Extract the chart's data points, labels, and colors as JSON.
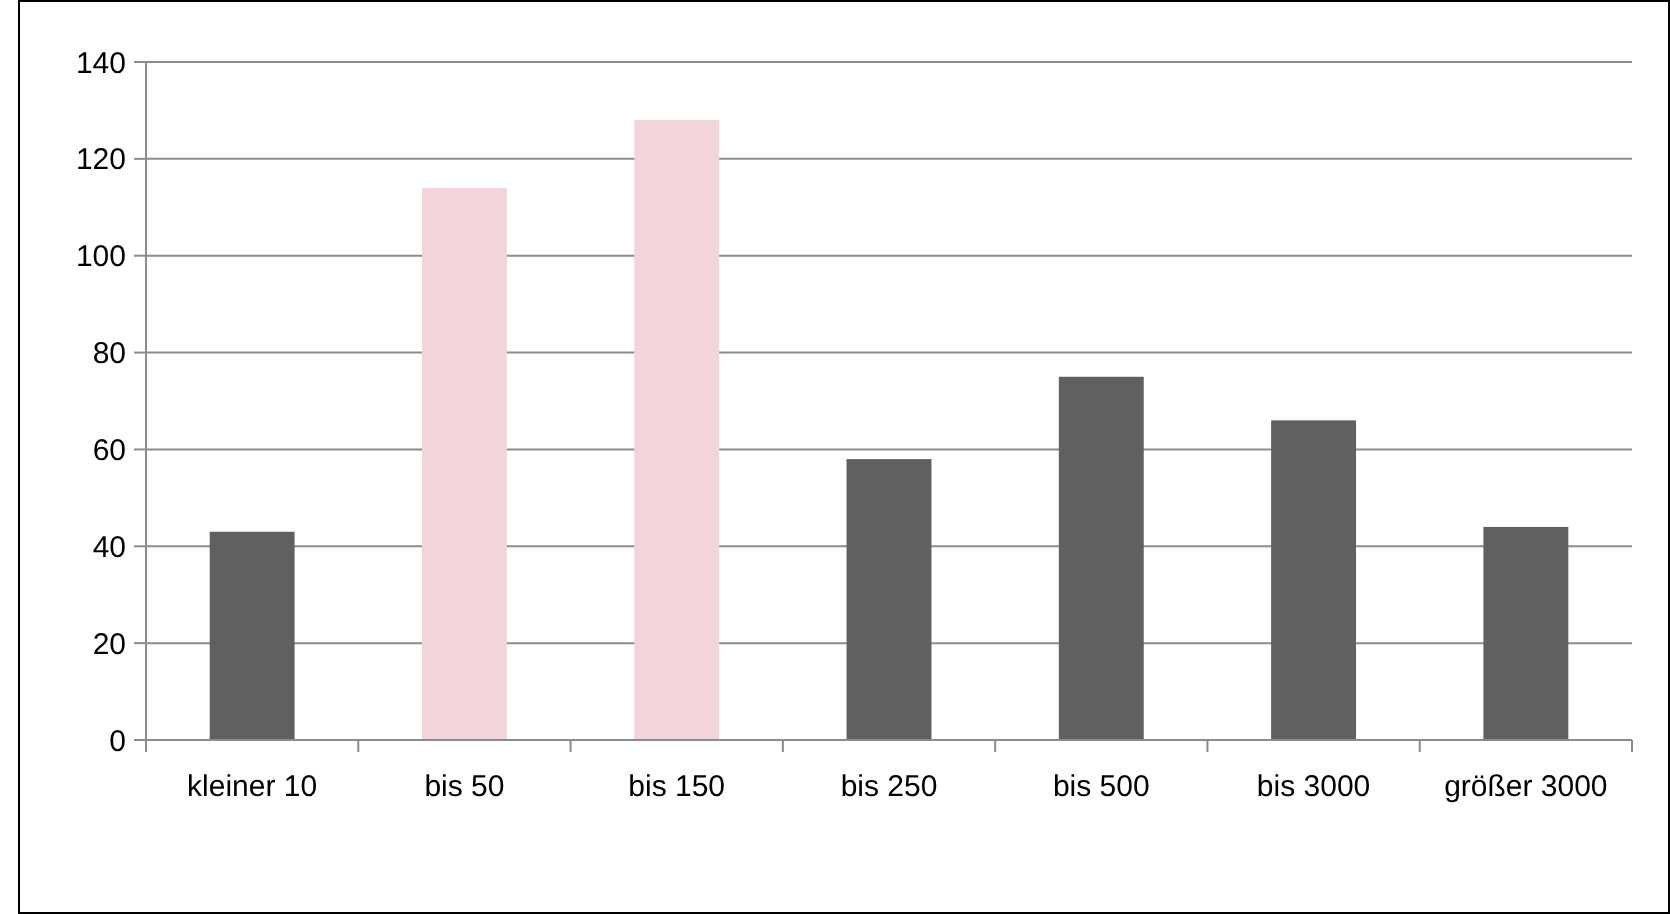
{
  "chart_data": {
    "type": "bar",
    "categories": [
      "kleiner 10",
      "bis 50",
      "bis 150",
      "bis 250",
      "bis 500",
      "bis 3000",
      "größer 3000"
    ],
    "values": [
      43,
      114,
      128,
      58,
      75,
      66,
      44
    ],
    "colors": [
      "#606060",
      "#f2d4da",
      "#f2d4da",
      "#606060",
      "#606060",
      "#606060",
      "#606060"
    ],
    "ylim": [
      0,
      140
    ],
    "yticks": [
      0,
      20,
      40,
      60,
      80,
      100,
      120,
      140
    ],
    "grid": "y"
  }
}
